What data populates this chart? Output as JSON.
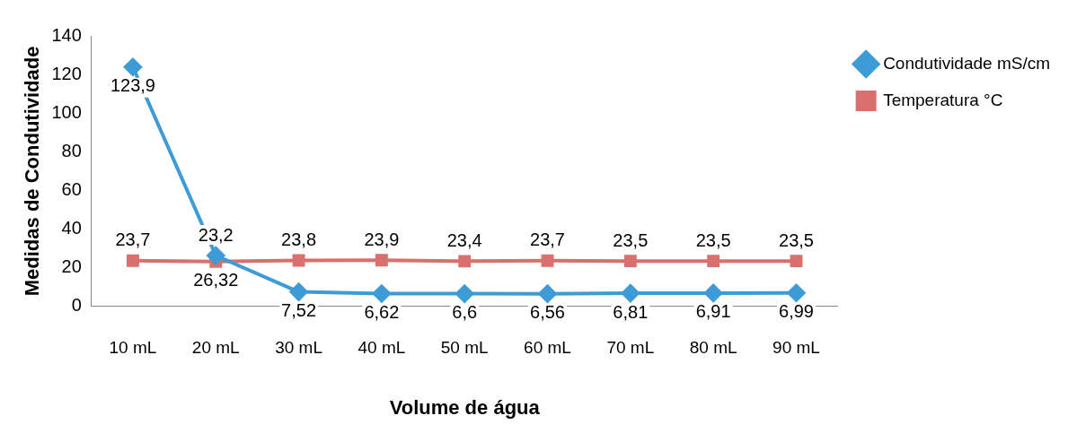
{
  "chart_data": {
    "type": "line",
    "xlabel": "Volume de água",
    "ylabel": "Medidas de Condutividade",
    "categories": [
      "10 mL",
      "20 mL",
      "30 mL",
      "40 mL",
      "50 mL",
      "60 mL",
      "70 mL",
      "80 mL",
      "90 mL"
    ],
    "series": [
      {
        "name": "Condutividade mS/cm",
        "color": "#3d9bd6",
        "marker": "diamond",
        "values": [
          123.9,
          26.32,
          7.52,
          6.62,
          6.6,
          6.56,
          6.81,
          6.91,
          6.99
        ],
        "value_labels": [
          "123,9",
          "26,32",
          "7,52",
          "6,62",
          "6,6",
          "6,56",
          "6,81",
          "6,91",
          "6,99"
        ]
      },
      {
        "name": "Temperatura °C",
        "color": "#d9706d",
        "marker": "square",
        "values": [
          23.7,
          23.2,
          23.8,
          23.9,
          23.4,
          23.7,
          23.5,
          23.5,
          23.5
        ],
        "value_labels": [
          "23,7",
          "23,2",
          "23,8",
          "23,9",
          "23,4",
          "23,7",
          "23,5",
          "23,5",
          "23,5"
        ]
      }
    ],
    "ylim": [
      0,
      140
    ],
    "yticks": [
      0,
      20,
      40,
      60,
      80,
      100,
      120,
      140
    ],
    "grid": false,
    "legend": "top right"
  }
}
